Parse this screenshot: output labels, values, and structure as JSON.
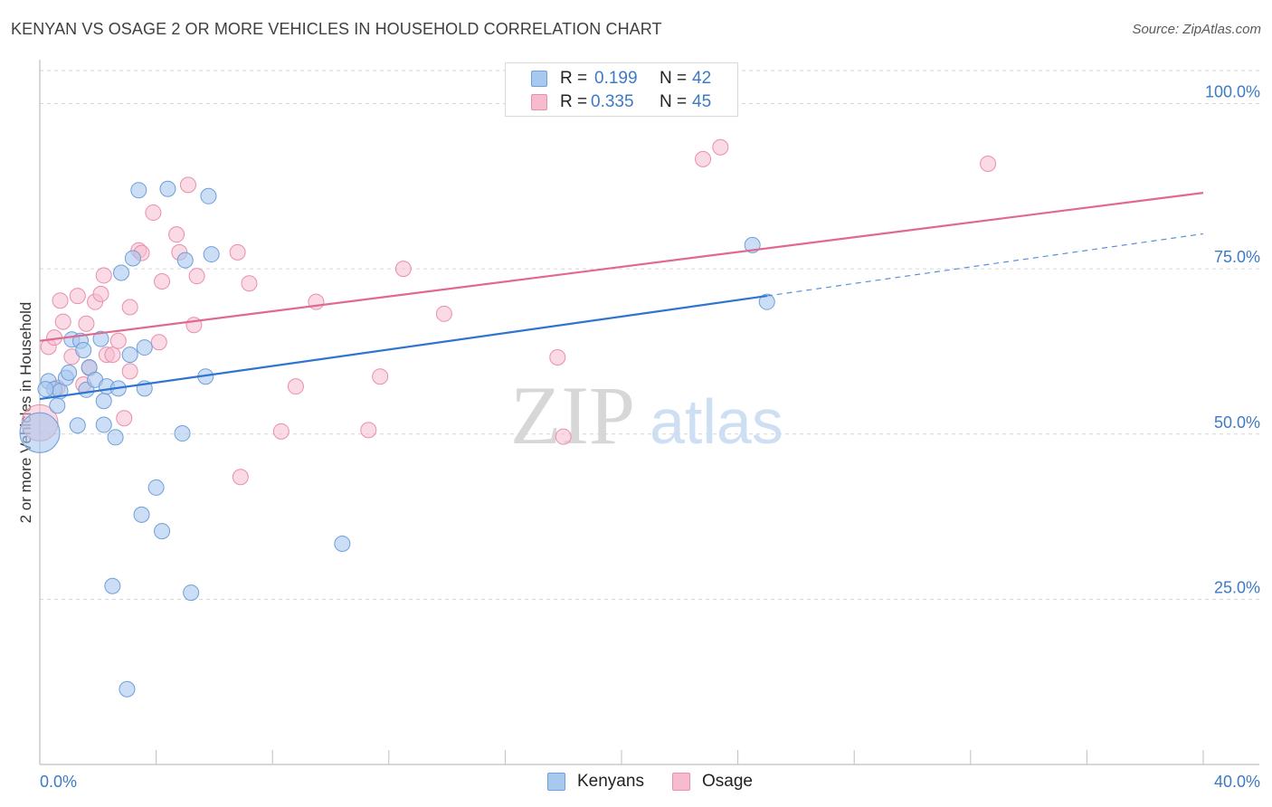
{
  "header": {
    "title": "KENYAN VS OSAGE 2 OR MORE VEHICLES IN HOUSEHOLD CORRELATION CHART",
    "source": "Source: ZipAtlas.com"
  },
  "watermark": {
    "zip": "ZIP",
    "atlas": "atlas"
  },
  "legend": {
    "kenyans": {
      "r_label": "R =",
      "r_value": "0.199",
      "n_label": "N =",
      "n_value": "42"
    },
    "osage": {
      "r_label": "R =",
      "r_value": "0.335",
      "n_label": "N =",
      "n_value": "45"
    }
  },
  "bottom_legend": {
    "kenyans": "Kenyans",
    "osage": "Osage"
  },
  "colors": {
    "kenyans_fill": "#a9c8ef",
    "kenyans_stroke": "#6f9fd8",
    "kenyans_line": "#2e74d0",
    "osage_fill": "#f6bccd",
    "osage_stroke": "#e98fab",
    "osage_line": "#e0698f",
    "tick_label": "#3d7ac4",
    "grid": "#d6d6d6"
  },
  "chart_data": {
    "type": "scatter",
    "title": "KENYAN VS OSAGE 2 OR MORE VEHICLES IN HOUSEHOLD CORRELATION CHART",
    "xlabel": "",
    "ylabel": "2 or more Vehicles in Household",
    "xlim": [
      0,
      40
    ],
    "ylim": [
      0,
      105
    ],
    "x_tick_labels": [
      {
        "value": 0,
        "label": "0.0%"
      },
      {
        "value": 40,
        "label": "40.0%"
      }
    ],
    "y_ticks": [
      {
        "value": 25,
        "label": "25.0%"
      },
      {
        "value": 50,
        "label": "50.0%"
      },
      {
        "value": 75,
        "label": "75.0%"
      },
      {
        "value": 100,
        "label": "100.0%"
      }
    ],
    "grid": "horizontal dashed",
    "legend_position": "top-center",
    "series": [
      {
        "name": "Kenyans",
        "r": 0.199,
        "n": 42,
        "trend": {
          "x_start": 0,
          "y_start": 55.3,
          "x_solid_end": 25,
          "y_solid_end": 70.9,
          "x_dash_end": 40,
          "y_dash_end": 80.3
        },
        "points": [
          {
            "x": 0.0,
            "y": 50.2,
            "big": true
          },
          {
            "x": 0.3,
            "y": 58.0
          },
          {
            "x": 0.5,
            "y": 56.8
          },
          {
            "x": 0.6,
            "y": 54.3
          },
          {
            "x": 0.7,
            "y": 56.5
          },
          {
            "x": 0.9,
            "y": 58.5
          },
          {
            "x": 1.0,
            "y": 59.3
          },
          {
            "x": 1.1,
            "y": 64.3
          },
          {
            "x": 1.3,
            "y": 51.3
          },
          {
            "x": 1.4,
            "y": 64.1
          },
          {
            "x": 1.5,
            "y": 62.7
          },
          {
            "x": 1.6,
            "y": 56.7
          },
          {
            "x": 1.7,
            "y": 60.1
          },
          {
            "x": 1.9,
            "y": 58.2
          },
          {
            "x": 2.1,
            "y": 64.4
          },
          {
            "x": 2.2,
            "y": 55.0
          },
          {
            "x": 2.2,
            "y": 51.4
          },
          {
            "x": 2.3,
            "y": 57.2
          },
          {
            "x": 2.5,
            "y": 27.0
          },
          {
            "x": 2.6,
            "y": 49.5
          },
          {
            "x": 2.7,
            "y": 56.9
          },
          {
            "x": 2.8,
            "y": 74.4
          },
          {
            "x": 3.1,
            "y": 62.0
          },
          {
            "x": 3.2,
            "y": 76.6
          },
          {
            "x": 3.4,
            "y": 86.9
          },
          {
            "x": 3.5,
            "y": 37.8
          },
          {
            "x": 3.6,
            "y": 56.9
          },
          {
            "x": 3.6,
            "y": 63.1
          },
          {
            "x": 4.0,
            "y": 41.9
          },
          {
            "x": 4.2,
            "y": 35.3
          },
          {
            "x": 4.4,
            "y": 87.1
          },
          {
            "x": 4.9,
            "y": 50.1
          },
          {
            "x": 5.0,
            "y": 76.3
          },
          {
            "x": 5.2,
            "y": 26.0
          },
          {
            "x": 5.7,
            "y": 58.7
          },
          {
            "x": 5.8,
            "y": 86.0
          },
          {
            "x": 5.9,
            "y": 77.2
          },
          {
            "x": 3.0,
            "y": 11.4
          },
          {
            "x": 10.4,
            "y": 33.4
          },
          {
            "x": 24.5,
            "y": 78.6
          },
          {
            "x": 25.0,
            "y": 70.0
          },
          {
            "x": 0.2,
            "y": 56.8
          }
        ]
      },
      {
        "name": "Osage",
        "r": 0.335,
        "n": 45,
        "trend": {
          "x_start": 0,
          "y_start": 64.1,
          "x_end": 40,
          "y_end": 86.5
        },
        "points": [
          {
            "x": 0.0,
            "y": 51.7,
            "big": true
          },
          {
            "x": 0.3,
            "y": 63.2
          },
          {
            "x": 0.5,
            "y": 64.6
          },
          {
            "x": 0.6,
            "y": 57.0
          },
          {
            "x": 0.7,
            "y": 70.2
          },
          {
            "x": 0.8,
            "y": 67.0
          },
          {
            "x": 1.1,
            "y": 61.7
          },
          {
            "x": 1.3,
            "y": 70.9
          },
          {
            "x": 1.5,
            "y": 57.5
          },
          {
            "x": 1.6,
            "y": 66.7
          },
          {
            "x": 1.7,
            "y": 60.0
          },
          {
            "x": 1.9,
            "y": 70.0
          },
          {
            "x": 2.1,
            "y": 71.2
          },
          {
            "x": 2.2,
            "y": 74.0
          },
          {
            "x": 2.3,
            "y": 62.0
          },
          {
            "x": 2.5,
            "y": 62.0
          },
          {
            "x": 2.7,
            "y": 64.1
          },
          {
            "x": 2.9,
            "y": 52.4
          },
          {
            "x": 3.1,
            "y": 69.2
          },
          {
            "x": 3.1,
            "y": 59.5
          },
          {
            "x": 3.4,
            "y": 77.8
          },
          {
            "x": 3.5,
            "y": 77.4
          },
          {
            "x": 3.9,
            "y": 83.5
          },
          {
            "x": 4.1,
            "y": 63.9
          },
          {
            "x": 4.2,
            "y": 73.1
          },
          {
            "x": 4.7,
            "y": 80.2
          },
          {
            "x": 4.8,
            "y": 77.5
          },
          {
            "x": 5.1,
            "y": 87.7
          },
          {
            "x": 5.3,
            "y": 66.5
          },
          {
            "x": 5.4,
            "y": 73.9
          },
          {
            "x": 6.8,
            "y": 77.5
          },
          {
            "x": 6.9,
            "y": 43.5
          },
          {
            "x": 7.2,
            "y": 72.8
          },
          {
            "x": 8.3,
            "y": 50.4
          },
          {
            "x": 8.8,
            "y": 57.2
          },
          {
            "x": 9.5,
            "y": 70.0
          },
          {
            "x": 11.3,
            "y": 50.6
          },
          {
            "x": 11.7,
            "y": 58.7
          },
          {
            "x": 12.5,
            "y": 75.0
          },
          {
            "x": 13.9,
            "y": 68.2
          },
          {
            "x": 17.8,
            "y": 61.6
          },
          {
            "x": 18.0,
            "y": 49.6
          },
          {
            "x": 22.8,
            "y": 91.6
          },
          {
            "x": 23.4,
            "y": 93.4
          },
          {
            "x": 32.6,
            "y": 90.9
          }
        ]
      }
    ]
  }
}
